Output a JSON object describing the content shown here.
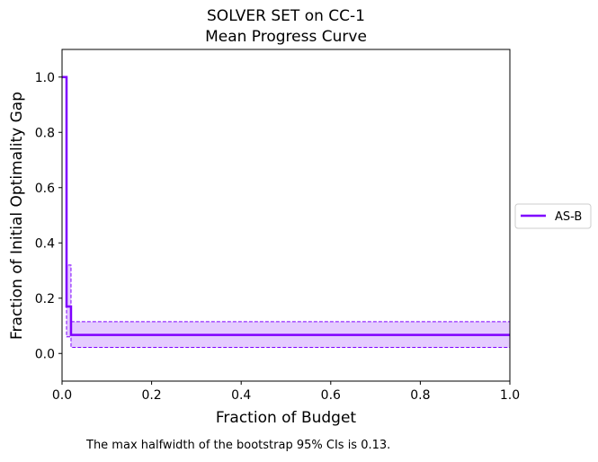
{
  "chart_data": {
    "type": "line",
    "title": "SOLVER SET on CC-1",
    "subtitle": "Mean Progress Curve",
    "xlabel": "Fraction of Budget",
    "ylabel": "Fraction of Initial Optimality Gap",
    "xlim": [
      0.0,
      1.0
    ],
    "ylim": [
      -0.1,
      1.1
    ],
    "xticks": [
      "0.0",
      "0.2",
      "0.4",
      "0.6",
      "0.8",
      "1.0"
    ],
    "yticks": [
      "0.0",
      "0.2",
      "0.4",
      "0.6",
      "0.8",
      "1.0"
    ],
    "grid": false,
    "legend_position": "right, outside plot",
    "series": [
      {
        "name": "AS-B",
        "color": "#7f00ff",
        "step": "post",
        "x": [
          0.0,
          0.01,
          0.02,
          1.0
        ],
        "y": [
          1.0,
          0.17,
          0.067,
          0.067
        ],
        "ci_upper": [
          1.0,
          0.32,
          0.115,
          0.115
        ],
        "ci_lower": [
          1.0,
          0.06,
          0.022,
          0.022
        ]
      }
    ],
    "footnote": "The max halfwidth of the bootstrap 95% CIs is 0.13."
  }
}
